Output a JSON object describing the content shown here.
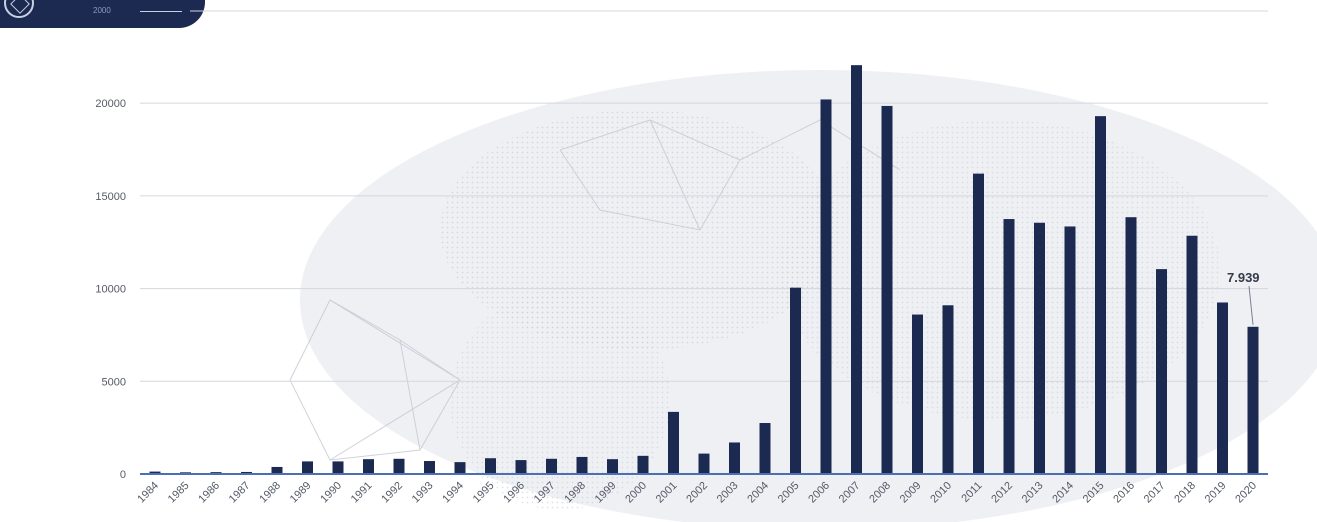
{
  "header": {
    "badge_text": "2000"
  },
  "colors": {
    "bar": "#1c2a52",
    "axis": "#4a6fb5",
    "grid": "#d3d7de"
  },
  "chart_data": {
    "type": "bar",
    "title": "",
    "xlabel": "",
    "ylabel": "",
    "categories": [
      "1984",
      "1985",
      "1986",
      "1987",
      "1988",
      "1989",
      "1990",
      "1991",
      "1992",
      "1993",
      "1994",
      "1995",
      "1996",
      "1997",
      "1998",
      "1999",
      "2000",
      "2001",
      "2002",
      "2003",
      "2004",
      "2005",
      "2006",
      "2007",
      "2008",
      "2009",
      "2010",
      "2011",
      "2012",
      "2013",
      "2014",
      "2015",
      "2016",
      "2017",
      "2018",
      "2019",
      "2020"
    ],
    "values": [
      130,
      90,
      100,
      110,
      380,
      680,
      680,
      800,
      820,
      700,
      640,
      850,
      750,
      820,
      920,
      800,
      980,
      3350,
      1100,
      1700,
      2750,
      10050,
      20200,
      22050,
      19850,
      8600,
      9100,
      16200,
      13750,
      13550,
      13350,
      19300,
      13850,
      11050,
      12850,
      9250,
      7939
    ],
    "ylim": [
      0,
      24000
    ],
    "yticks": [
      0,
      5000,
      10000,
      15000,
      20000
    ],
    "grid": true,
    "legend": "none",
    "annotations": [
      {
        "category": "2020",
        "text": "7.939"
      }
    ]
  }
}
